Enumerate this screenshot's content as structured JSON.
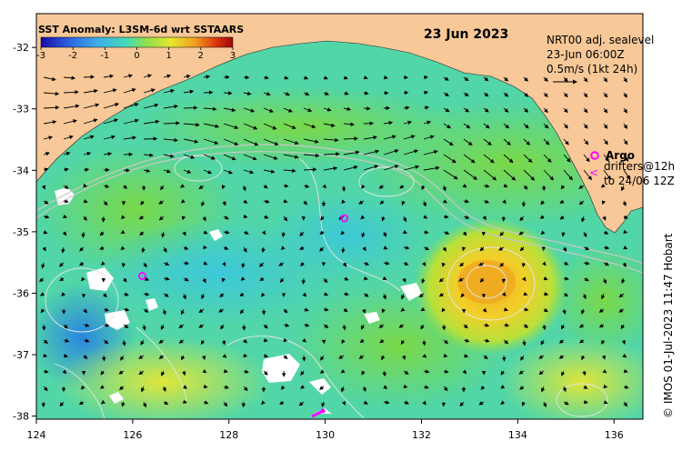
{
  "title": "SST Anomaly: L3SM-6d wrt SSTAARS",
  "date": "23 Jun 2023",
  "colorbar": {
    "ticks": [
      "-3",
      "-2",
      "-1",
      "0",
      "1",
      "2",
      "3"
    ],
    "colors": [
      "#1b0aa8",
      "#2c5fe0",
      "#3fb0e8",
      "#45dcb4",
      "#8fe04a",
      "#e6e82c",
      "#f2a020",
      "#d83010",
      "#9a0a08"
    ]
  },
  "sealevel": {
    "line1": "NRT00 adj. sealevel",
    "line2": "23-Jun 06:00Z",
    "line3": "0.5m/s (1kt 24h)"
  },
  "argo_legend": {
    "argo_label": "Argo",
    "drifters_line1": "drifters@12h",
    "drifters_line2": "to 24/06 12Z"
  },
  "x_axis": {
    "labels": [
      "124",
      "126",
      "128",
      "130",
      "132",
      "134",
      "136"
    ],
    "values": [
      124,
      126,
      128,
      130,
      132,
      134,
      136
    ]
  },
  "y_axis": {
    "labels": [
      "-32",
      "-33",
      "-34",
      "-35",
      "-36",
      "-37",
      "-38"
    ],
    "values": [
      -32,
      -33,
      -34,
      -35,
      -36,
      -37,
      -38
    ]
  },
  "argo_floats": [
    {
      "lon": 130.4,
      "lat": -34.78
    },
    {
      "lon": 126.2,
      "lat": -35.72
    }
  ],
  "credit": "© IMOS 01-Jul-2023 11:47 Hobart",
  "colors": {
    "land": "#f8c898",
    "argo": "#ff00ff",
    "arrow": "#000000",
    "contour": "#e6e6e6"
  }
}
